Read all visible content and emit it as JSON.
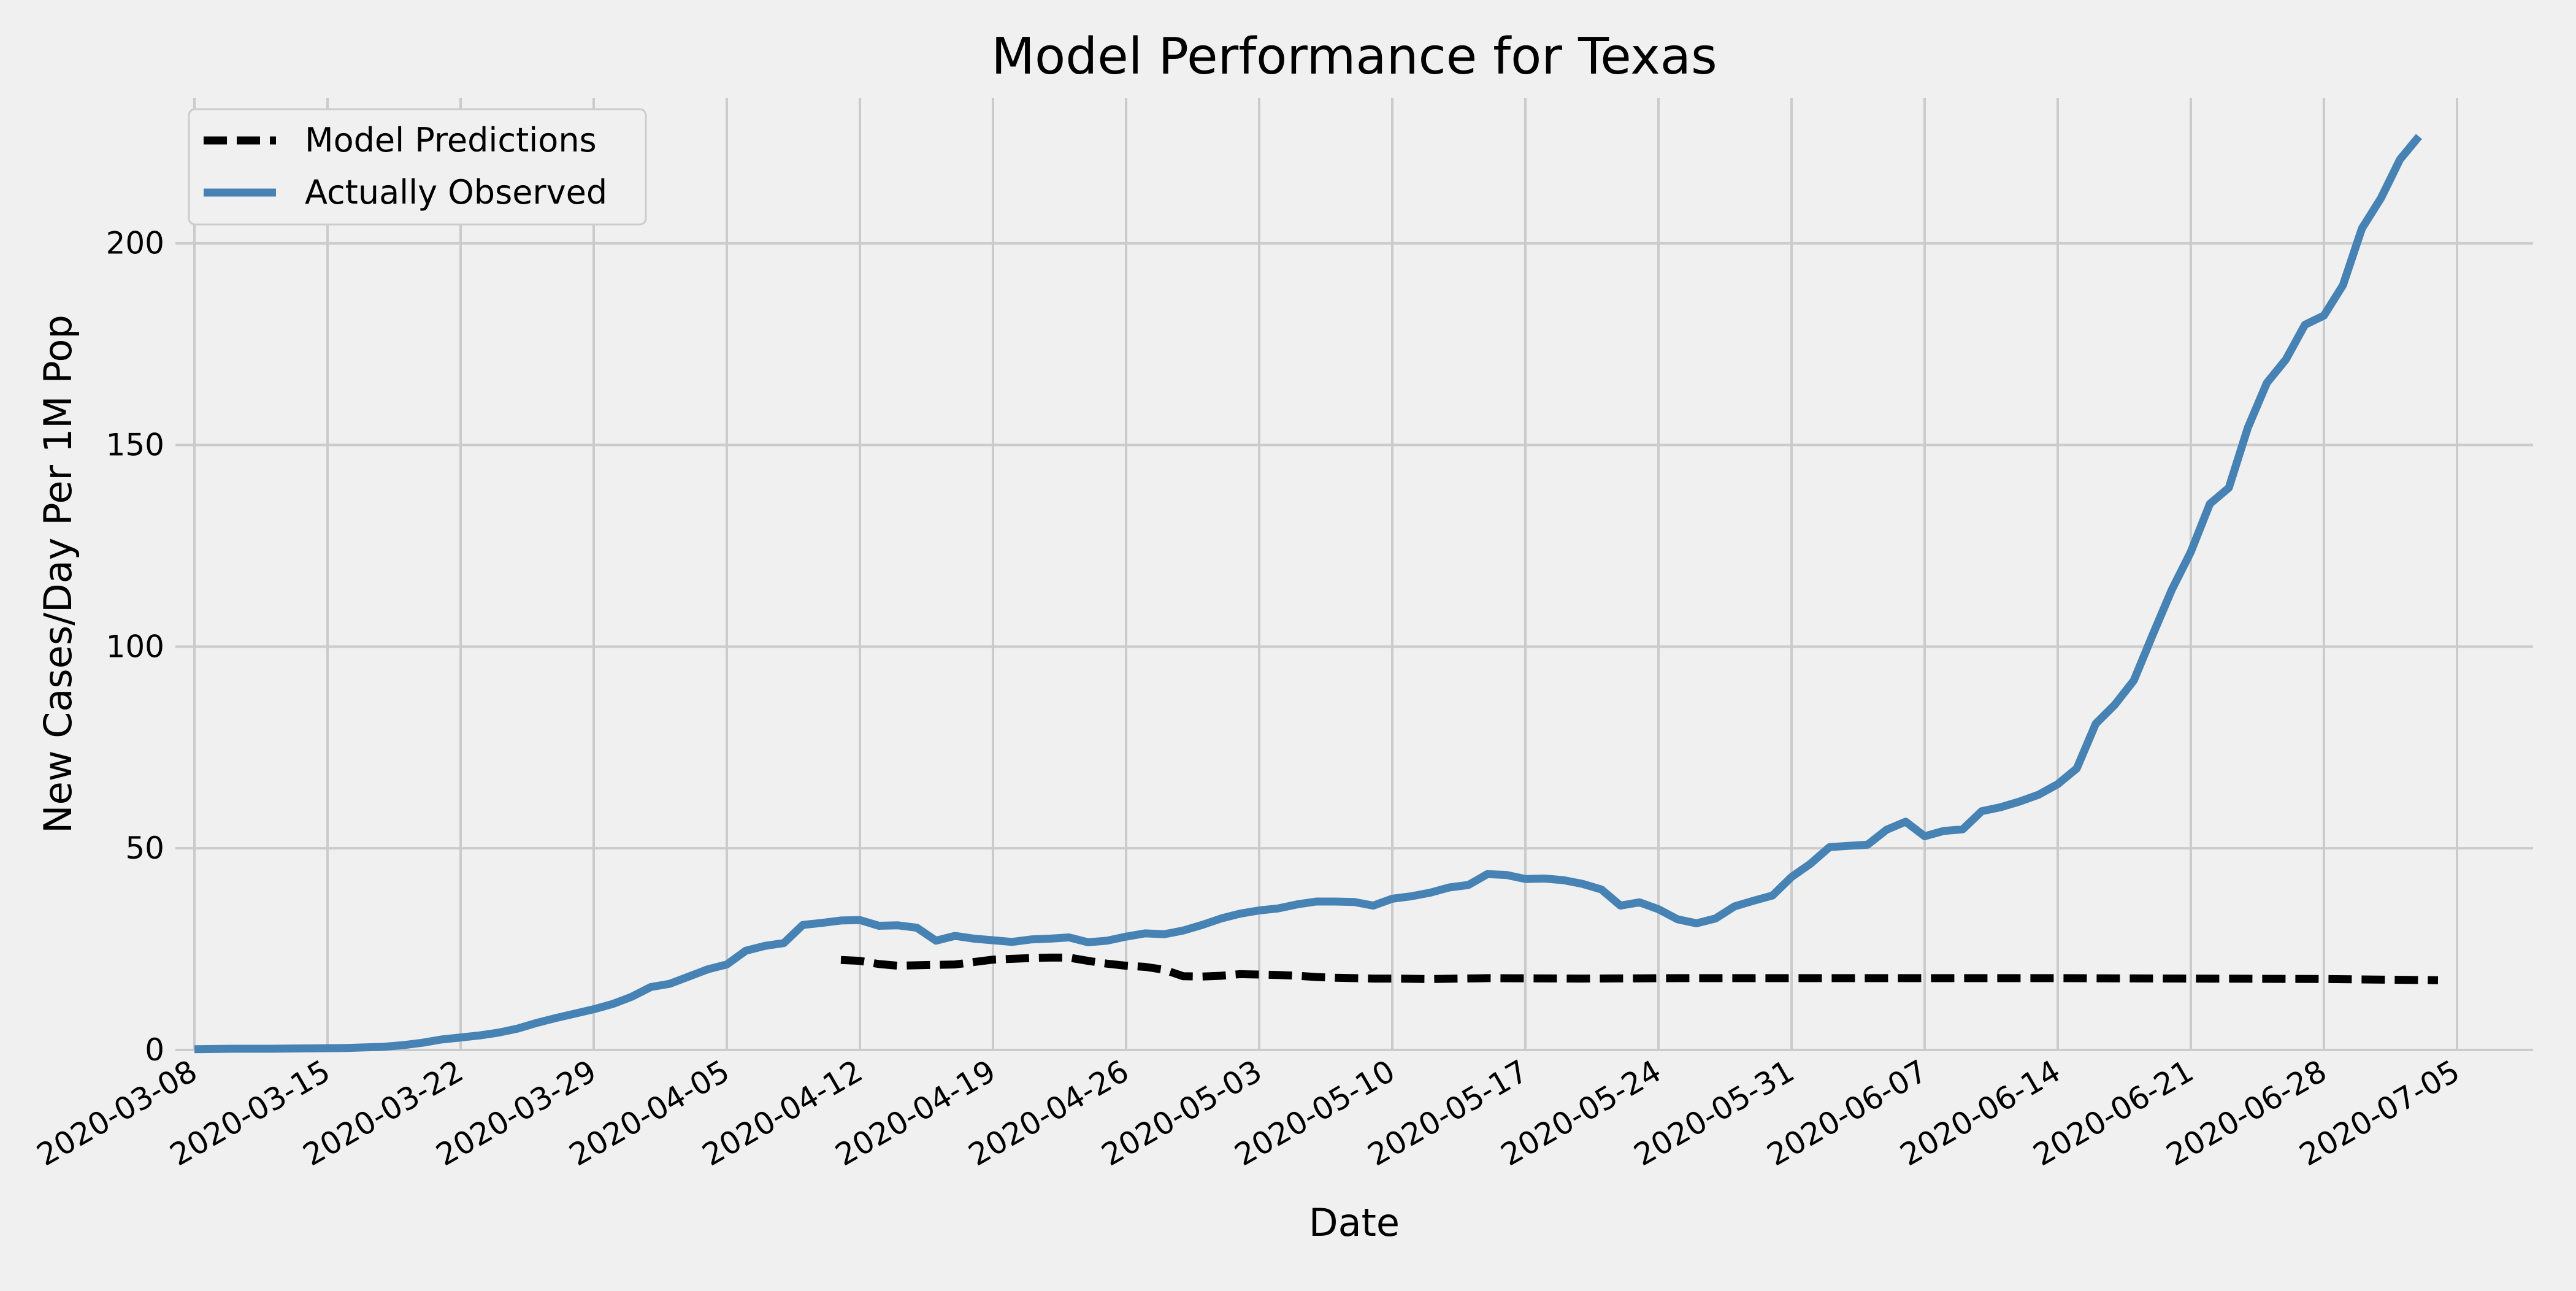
{
  "chart_data": {
    "type": "line",
    "title": "Model Performance for Texas",
    "xlabel": "Date",
    "ylabel": "New Cases/Day Per 1M Pop",
    "ylim": [
      0,
      236
    ],
    "y_ticks": [
      0,
      50,
      100,
      150,
      200
    ],
    "x_tick_labels": [
      "2020-03-08",
      "2020-03-15",
      "2020-03-22",
      "2020-03-29",
      "2020-04-05",
      "2020-04-12",
      "2020-04-19",
      "2020-04-26",
      "2020-05-03",
      "2020-05-10",
      "2020-05-17",
      "2020-05-24",
      "2020-05-31",
      "2020-06-07",
      "2020-06-14",
      "2020-06-21",
      "2020-06-28",
      "2020-07-05"
    ],
    "xlim": [
      "2020-03-07",
      "2020-07-09"
    ],
    "grid": true,
    "legend_position": "top-left",
    "colors": {
      "background": "#f0f0f0",
      "grid": "#cbcbcb",
      "observed": "#4682b4",
      "model": "#000000"
    },
    "series": [
      {
        "name": "Model Predictions",
        "style": "dashed",
        "color": "#000000",
        "points": [
          [
            "2020-04-11",
            22.3
          ],
          [
            "2020-04-12",
            22.1
          ],
          [
            "2020-04-13",
            21.3
          ],
          [
            "2020-04-14",
            20.9
          ],
          [
            "2020-04-15",
            21.0
          ],
          [
            "2020-04-16",
            21.1
          ],
          [
            "2020-04-17",
            21.2
          ],
          [
            "2020-04-18",
            21.8
          ],
          [
            "2020-04-19",
            22.4
          ],
          [
            "2020-04-20",
            22.6
          ],
          [
            "2020-04-21",
            22.8
          ],
          [
            "2020-04-22",
            22.9
          ],
          [
            "2020-04-23",
            22.9
          ],
          [
            "2020-04-24",
            22.1
          ],
          [
            "2020-04-25",
            21.4
          ],
          [
            "2020-04-26",
            20.9
          ],
          [
            "2020-04-27",
            20.6
          ],
          [
            "2020-04-28",
            19.9
          ],
          [
            "2020-04-29",
            18.3
          ],
          [
            "2020-04-30",
            18.2
          ],
          [
            "2020-05-01",
            18.4
          ],
          [
            "2020-05-02",
            18.8
          ],
          [
            "2020-05-03",
            18.7
          ],
          [
            "2020-05-04",
            18.6
          ],
          [
            "2020-05-05",
            18.4
          ],
          [
            "2020-05-06",
            18.1
          ],
          [
            "2020-05-07",
            17.9
          ],
          [
            "2020-05-08",
            17.8
          ],
          [
            "2020-05-09",
            17.7
          ],
          [
            "2020-05-10",
            17.7
          ],
          [
            "2020-05-12",
            17.6
          ],
          [
            "2020-05-15",
            17.8
          ],
          [
            "2020-05-20",
            17.7
          ],
          [
            "2020-05-25",
            17.8
          ],
          [
            "2020-05-31",
            17.8
          ],
          [
            "2020-06-07",
            17.8
          ],
          [
            "2020-06-14",
            17.8
          ],
          [
            "2020-06-21",
            17.7
          ],
          [
            "2020-06-28",
            17.6
          ],
          [
            "2020-07-02",
            17.4
          ],
          [
            "2020-07-04",
            17.3
          ]
        ]
      },
      {
        "name": "Actually Observed",
        "style": "solid",
        "color": "#4682b4",
        "points": [
          [
            "2020-03-08",
            0.2
          ],
          [
            "2020-03-10",
            0.3
          ],
          [
            "2020-03-12",
            0.3
          ],
          [
            "2020-03-14",
            0.4
          ],
          [
            "2020-03-16",
            0.5
          ],
          [
            "2020-03-18",
            0.8
          ],
          [
            "2020-03-19",
            1.2
          ],
          [
            "2020-03-20",
            1.8
          ],
          [
            "2020-03-21",
            2.6
          ],
          [
            "2020-03-22",
            3.1
          ],
          [
            "2020-03-23",
            3.6
          ],
          [
            "2020-03-24",
            4.3
          ],
          [
            "2020-03-25",
            5.3
          ],
          [
            "2020-03-26",
            6.7
          ],
          [
            "2020-03-27",
            7.9
          ],
          [
            "2020-03-28",
            9.0
          ],
          [
            "2020-03-29",
            10.1
          ],
          [
            "2020-03-30",
            11.4
          ],
          [
            "2020-03-31",
            13.2
          ],
          [
            "2020-04-01",
            15.6
          ],
          [
            "2020-04-02",
            16.4
          ],
          [
            "2020-04-03",
            18.2
          ],
          [
            "2020-04-04",
            20.0
          ],
          [
            "2020-04-05",
            21.2
          ],
          [
            "2020-04-06",
            24.6
          ],
          [
            "2020-04-07",
            25.8
          ],
          [
            "2020-04-08",
            26.5
          ],
          [
            "2020-04-09",
            31.0
          ],
          [
            "2020-04-10",
            31.5
          ],
          [
            "2020-04-11",
            32.1
          ],
          [
            "2020-04-12",
            32.2
          ],
          [
            "2020-04-13",
            30.8
          ],
          [
            "2020-04-14",
            30.9
          ],
          [
            "2020-04-15",
            30.3
          ],
          [
            "2020-04-16",
            27.1
          ],
          [
            "2020-04-17",
            28.3
          ],
          [
            "2020-04-18",
            27.6
          ],
          [
            "2020-04-19",
            27.2
          ],
          [
            "2020-04-20",
            26.8
          ],
          [
            "2020-04-21",
            27.4
          ],
          [
            "2020-04-22",
            27.6
          ],
          [
            "2020-04-23",
            27.9
          ],
          [
            "2020-04-24",
            26.7
          ],
          [
            "2020-04-25",
            27.1
          ],
          [
            "2020-04-26",
            28.1
          ],
          [
            "2020-04-27",
            28.9
          ],
          [
            "2020-04-28",
            28.7
          ],
          [
            "2020-04-29",
            29.6
          ],
          [
            "2020-04-30",
            31.0
          ],
          [
            "2020-05-01",
            32.6
          ],
          [
            "2020-05-02",
            33.8
          ],
          [
            "2020-05-03",
            34.6
          ],
          [
            "2020-05-04",
            35.1
          ],
          [
            "2020-05-05",
            36.1
          ],
          [
            "2020-05-06",
            36.8
          ],
          [
            "2020-05-07",
            36.8
          ],
          [
            "2020-05-08",
            36.7
          ],
          [
            "2020-05-09",
            35.8
          ],
          [
            "2020-05-10",
            37.5
          ],
          [
            "2020-05-11",
            38.1
          ],
          [
            "2020-05-12",
            39.0
          ],
          [
            "2020-05-13",
            40.3
          ],
          [
            "2020-05-14",
            40.9
          ],
          [
            "2020-05-15",
            43.6
          ],
          [
            "2020-05-16",
            43.4
          ],
          [
            "2020-05-17",
            42.4
          ],
          [
            "2020-05-18",
            42.5
          ],
          [
            "2020-05-19",
            42.1
          ],
          [
            "2020-05-20",
            41.2
          ],
          [
            "2020-05-21",
            39.8
          ],
          [
            "2020-05-22",
            35.8
          ],
          [
            "2020-05-23",
            36.6
          ],
          [
            "2020-05-24",
            34.9
          ],
          [
            "2020-05-25",
            32.4
          ],
          [
            "2020-05-26",
            31.4
          ],
          [
            "2020-05-27",
            32.6
          ],
          [
            "2020-05-28",
            35.6
          ],
          [
            "2020-05-29",
            37.0
          ],
          [
            "2020-05-30",
            38.3
          ],
          [
            "2020-05-31",
            42.9
          ],
          [
            "2020-06-01",
            46.2
          ],
          [
            "2020-06-02",
            50.3
          ],
          [
            "2020-06-03",
            50.6
          ],
          [
            "2020-06-04",
            50.9
          ],
          [
            "2020-06-05",
            54.6
          ],
          [
            "2020-06-06",
            56.6
          ],
          [
            "2020-06-07",
            53.0
          ],
          [
            "2020-06-08",
            54.3
          ],
          [
            "2020-06-09",
            54.7
          ],
          [
            "2020-06-10",
            59.2
          ],
          [
            "2020-06-11",
            60.2
          ],
          [
            "2020-06-12",
            61.6
          ],
          [
            "2020-06-13",
            63.3
          ],
          [
            "2020-06-14",
            65.9
          ],
          [
            "2020-06-15",
            69.8
          ],
          [
            "2020-06-16",
            80.9
          ],
          [
            "2020-06-17",
            85.6
          ],
          [
            "2020-06-18",
            91.6
          ],
          [
            "2020-06-19",
            103.0
          ],
          [
            "2020-06-20",
            114.1
          ],
          [
            "2020-06-21",
            123.5
          ],
          [
            "2020-06-22",
            135.4
          ],
          [
            "2020-06-23",
            139.4
          ],
          [
            "2020-06-24",
            154.3
          ],
          [
            "2020-06-25",
            165.4
          ],
          [
            "2020-06-26",
            171.2
          ],
          [
            "2020-06-27",
            179.8
          ],
          [
            "2020-06-28",
            182.1
          ],
          [
            "2020-06-29",
            189.6
          ],
          [
            "2020-06-30",
            203.7
          ],
          [
            "2020-07-01",
            211.2
          ],
          [
            "2020-07-02",
            220.8
          ],
          [
            "2020-07-03",
            226.5
          ]
        ]
      }
    ]
  }
}
